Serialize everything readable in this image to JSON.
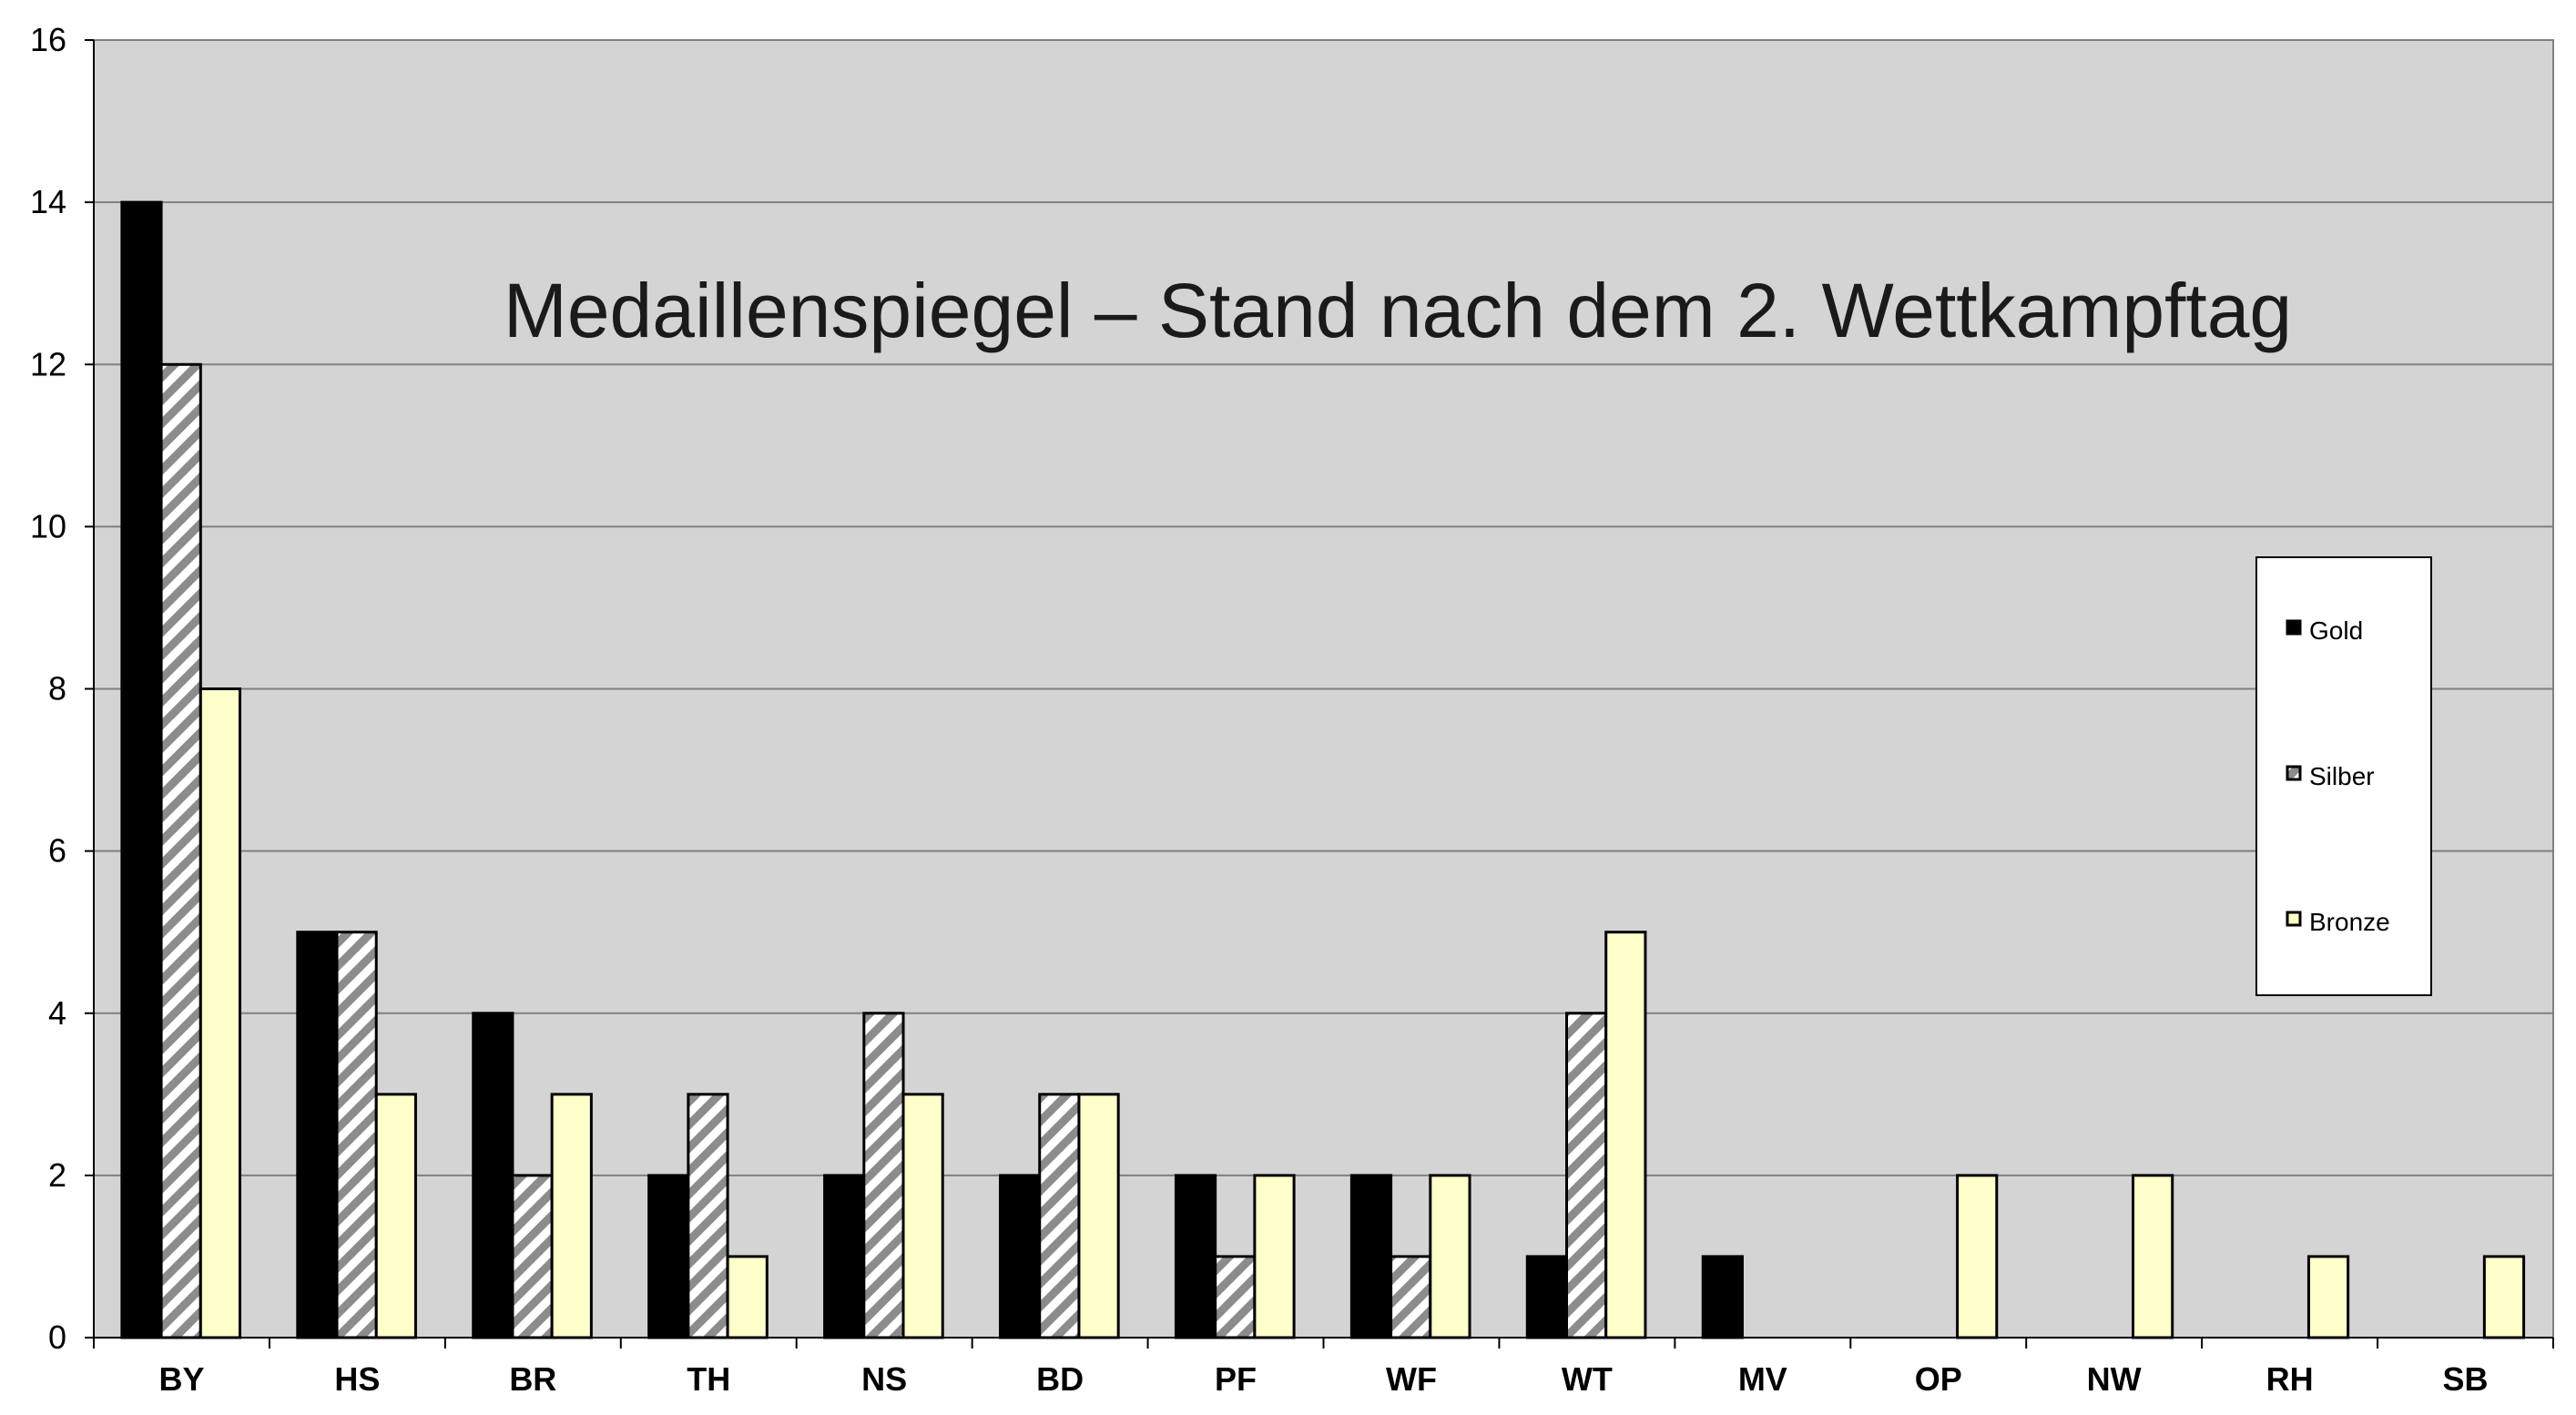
{
  "chart_data": {
    "type": "bar",
    "title": "Medaillenspiegel – Stand nach dem 2. Wettkampftag",
    "xlabel": "",
    "ylabel": "",
    "ylim": [
      0,
      16
    ],
    "yticks": [
      0,
      2,
      4,
      6,
      8,
      10,
      12,
      14,
      16
    ],
    "grid": true,
    "legend_position": "right",
    "categories": [
      "BY",
      "HS",
      "BR",
      "TH",
      "NS",
      "BD",
      "PF",
      "WF",
      "WT",
      "MV",
      "OP",
      "NW",
      "RH",
      "SB"
    ],
    "series": [
      {
        "name": "Gold",
        "fill": "solid-black",
        "color": "#000000",
        "values": [
          14,
          5,
          4,
          2,
          2,
          2,
          2,
          2,
          1,
          1,
          0,
          0,
          0,
          0
        ]
      },
      {
        "name": "Silber",
        "fill": "diagonal-hatch",
        "color": "#8c8c8c",
        "values": [
          12,
          5,
          2,
          3,
          4,
          3,
          1,
          1,
          4,
          0,
          0,
          0,
          0,
          0
        ]
      },
      {
        "name": "Bronze",
        "fill": "solid-pale-yellow",
        "color": "#ffffcc",
        "values": [
          8,
          3,
          3,
          1,
          3,
          3,
          2,
          2,
          5,
          0,
          2,
          2,
          1,
          1
        ]
      }
    ],
    "plot_background": "#d4d4d4",
    "gridline_color": "#808080"
  }
}
